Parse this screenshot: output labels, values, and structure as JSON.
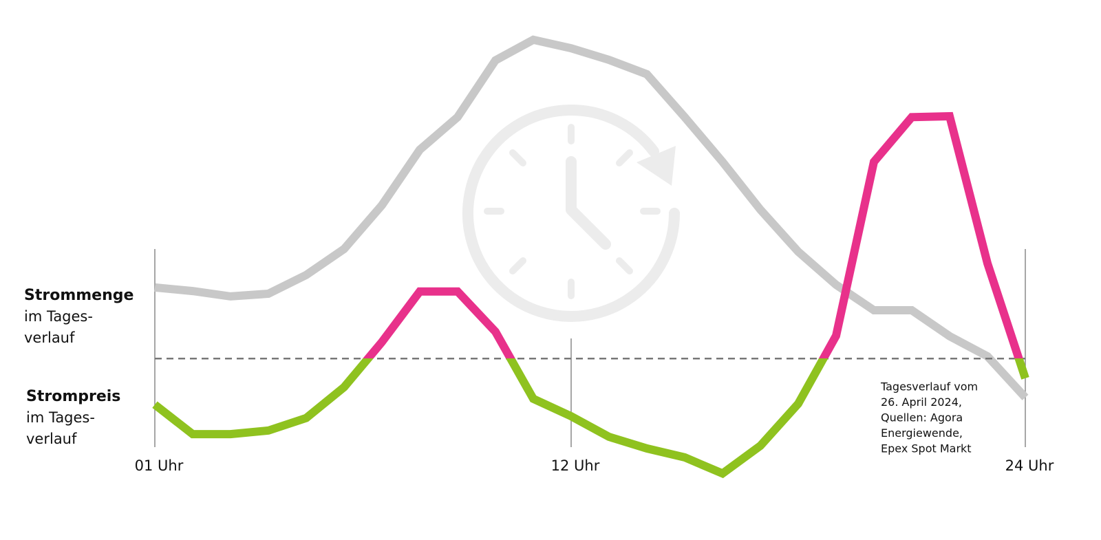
{
  "chart_data": {
    "type": "line",
    "x": [
      1,
      2,
      3,
      4,
      5,
      6,
      7,
      8,
      9,
      10,
      11,
      12,
      13,
      14,
      15,
      16,
      17,
      18,
      19,
      20,
      21,
      22,
      23,
      24
    ],
    "xlim": [
      1,
      24
    ],
    "xticks": [
      {
        "value": 1,
        "label": "01 Uhr"
      },
      {
        "value": 12,
        "label": "12 Uhr"
      },
      {
        "value": 24,
        "label": "24 Uhr"
      }
    ],
    "ylim": [
      0,
      100
    ],
    "threshold": 27.5,
    "series": [
      {
        "name": "Strommenge",
        "label_lines": [
          "im Tages-",
          "verlauf"
        ],
        "color": "#c8c8c8",
        "values": [
          43.4,
          42.6,
          41.4,
          42,
          46.2,
          52,
          61.8,
          74.2,
          81.5,
          94.2,
          98.8,
          96.9,
          94.3,
          91.1,
          81.5,
          71.5,
          60.8,
          51.4,
          44,
          38.3,
          38.3,
          32.5,
          28,
          18.8
        ]
      },
      {
        "name": "Strompreis",
        "label_lines": [
          "im Tages-",
          "verlauf"
        ],
        "color_above": "#e8318b",
        "color_below": "#8fc21f",
        "values": [
          17.2,
          10.6,
          10.6,
          11.4,
          14.2,
          21.1,
          31.2,
          42.5,
          42.5,
          33.5,
          18.5,
          14.6,
          10,
          7.4,
          5.4,
          1.8,
          8,
          17.4,
          32.6,
          71.5,
          81.5,
          81.7,
          48.8,
          23.1
        ]
      }
    ],
    "note_lines": [
      "Tagesverlauf vom",
      "26. April 2024,",
      "Quellen: Agora",
      "Energiewende,",
      "Epex Spot Markt"
    ]
  }
}
